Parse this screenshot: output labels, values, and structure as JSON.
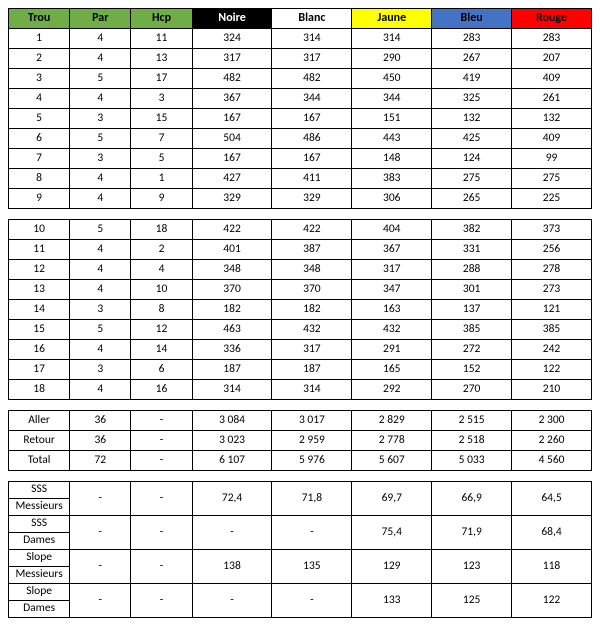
{
  "headers": {
    "trou": {
      "label": "Trou",
      "bg": "#70ad47",
      "fg": "#000000"
    },
    "par": {
      "label": "Par",
      "bg": "#70ad47",
      "fg": "#000000"
    },
    "hcp": {
      "label": "Hcp",
      "bg": "#70ad47",
      "fg": "#000000"
    },
    "noire": {
      "label": "Noire",
      "bg": "#000000",
      "fg": "#ffffff"
    },
    "blanc": {
      "label": "Blanc",
      "bg": "#ffffff",
      "fg": "#000000"
    },
    "jaune": {
      "label": "Jaune",
      "bg": "#ffff00",
      "fg": "#000000"
    },
    "bleu": {
      "label": "Bleu",
      "bg": "#4472c4",
      "fg": "#000000"
    },
    "rouge": {
      "label": "Rouge",
      "bg": "#ff0000",
      "fg": "#000000"
    }
  },
  "front9": [
    {
      "hole": "1",
      "par": "4",
      "hcp": "11",
      "noire": "324",
      "blanc": "314",
      "jaune": "314",
      "bleu": "283",
      "rouge": "283"
    },
    {
      "hole": "2",
      "par": "4",
      "hcp": "13",
      "noire": "317",
      "blanc": "317",
      "jaune": "290",
      "bleu": "267",
      "rouge": "207"
    },
    {
      "hole": "3",
      "par": "5",
      "hcp": "17",
      "noire": "482",
      "blanc": "482",
      "jaune": "450",
      "bleu": "419",
      "rouge": "409"
    },
    {
      "hole": "4",
      "par": "4",
      "hcp": "3",
      "noire": "367",
      "blanc": "344",
      "jaune": "344",
      "bleu": "325",
      "rouge": "261"
    },
    {
      "hole": "5",
      "par": "3",
      "hcp": "15",
      "noire": "167",
      "blanc": "167",
      "jaune": "151",
      "bleu": "132",
      "rouge": "132"
    },
    {
      "hole": "6",
      "par": "5",
      "hcp": "7",
      "noire": "504",
      "blanc": "486",
      "jaune": "443",
      "bleu": "425",
      "rouge": "409"
    },
    {
      "hole": "7",
      "par": "3",
      "hcp": "5",
      "noire": "167",
      "blanc": "167",
      "jaune": "148",
      "bleu": "124",
      "rouge": "99"
    },
    {
      "hole": "8",
      "par": "4",
      "hcp": "1",
      "noire": "427",
      "blanc": "411",
      "jaune": "383",
      "bleu": "275",
      "rouge": "275"
    },
    {
      "hole": "9",
      "par": "4",
      "hcp": "9",
      "noire": "329",
      "blanc": "329",
      "jaune": "306",
      "bleu": "265",
      "rouge": "225"
    }
  ],
  "back9": [
    {
      "hole": "10",
      "par": "5",
      "hcp": "18",
      "noire": "422",
      "blanc": "422",
      "jaune": "404",
      "bleu": "382",
      "rouge": "373"
    },
    {
      "hole": "11",
      "par": "4",
      "hcp": "2",
      "noire": "401",
      "blanc": "387",
      "jaune": "367",
      "bleu": "331",
      "rouge": "256"
    },
    {
      "hole": "12",
      "par": "4",
      "hcp": "4",
      "noire": "348",
      "blanc": "348",
      "jaune": "317",
      "bleu": "288",
      "rouge": "278"
    },
    {
      "hole": "13",
      "par": "4",
      "hcp": "10",
      "noire": "370",
      "blanc": "370",
      "jaune": "347",
      "bleu": "301",
      "rouge": "273"
    },
    {
      "hole": "14",
      "par": "3",
      "hcp": "8",
      "noire": "182",
      "blanc": "182",
      "jaune": "163",
      "bleu": "137",
      "rouge": "121"
    },
    {
      "hole": "15",
      "par": "5",
      "hcp": "12",
      "noire": "463",
      "blanc": "432",
      "jaune": "432",
      "bleu": "385",
      "rouge": "385"
    },
    {
      "hole": "16",
      "par": "4",
      "hcp": "14",
      "noire": "336",
      "blanc": "317",
      "jaune": "291",
      "bleu": "272",
      "rouge": "242"
    },
    {
      "hole": "17",
      "par": "3",
      "hcp": "6",
      "noire": "187",
      "blanc": "187",
      "jaune": "165",
      "bleu": "152",
      "rouge": "122"
    },
    {
      "hole": "18",
      "par": "4",
      "hcp": "16",
      "noire": "314",
      "blanc": "314",
      "jaune": "292",
      "bleu": "270",
      "rouge": "210"
    }
  ],
  "totals": [
    {
      "label": "Aller",
      "par": "36",
      "hcp": "-",
      "noire": "3 084",
      "blanc": "3 017",
      "jaune": "2 829",
      "bleu": "2 515",
      "rouge": "2 300"
    },
    {
      "label": "Retour",
      "par": "36",
      "hcp": "-",
      "noire": "3 023",
      "blanc": "2 959",
      "jaune": "2 778",
      "bleu": "2 518",
      "rouge": "2 260"
    },
    {
      "label": "Total",
      "par": "72",
      "hcp": "-",
      "noire": "6 107",
      "blanc": "5 976",
      "jaune": "5 607",
      "bleu": "5 033",
      "rouge": "4 560"
    }
  ],
  "stats": [
    {
      "l1": "SSS",
      "l2": "Messieurs",
      "par": "-",
      "hcp": "-",
      "noire": "72,4",
      "blanc": "71,8",
      "jaune": "69,7",
      "bleu": "66,9",
      "rouge": "64,5"
    },
    {
      "l1": "SSS",
      "l2": "Dames",
      "par": "-",
      "hcp": "-",
      "noire": "-",
      "blanc": "-",
      "jaune": "75,4",
      "bleu": "71,9",
      "rouge": "68,4"
    },
    {
      "l1": "Slope",
      "l2": "Messieurs",
      "par": "-",
      "hcp": "-",
      "noire": "138",
      "blanc": "135",
      "jaune": "129",
      "bleu": "123",
      "rouge": "118"
    },
    {
      "l1": "Slope",
      "l2": "Dames",
      "par": "-",
      "hcp": "-",
      "noire": "-",
      "blanc": "-",
      "jaune": "133",
      "bleu": "125",
      "rouge": "122"
    }
  ]
}
